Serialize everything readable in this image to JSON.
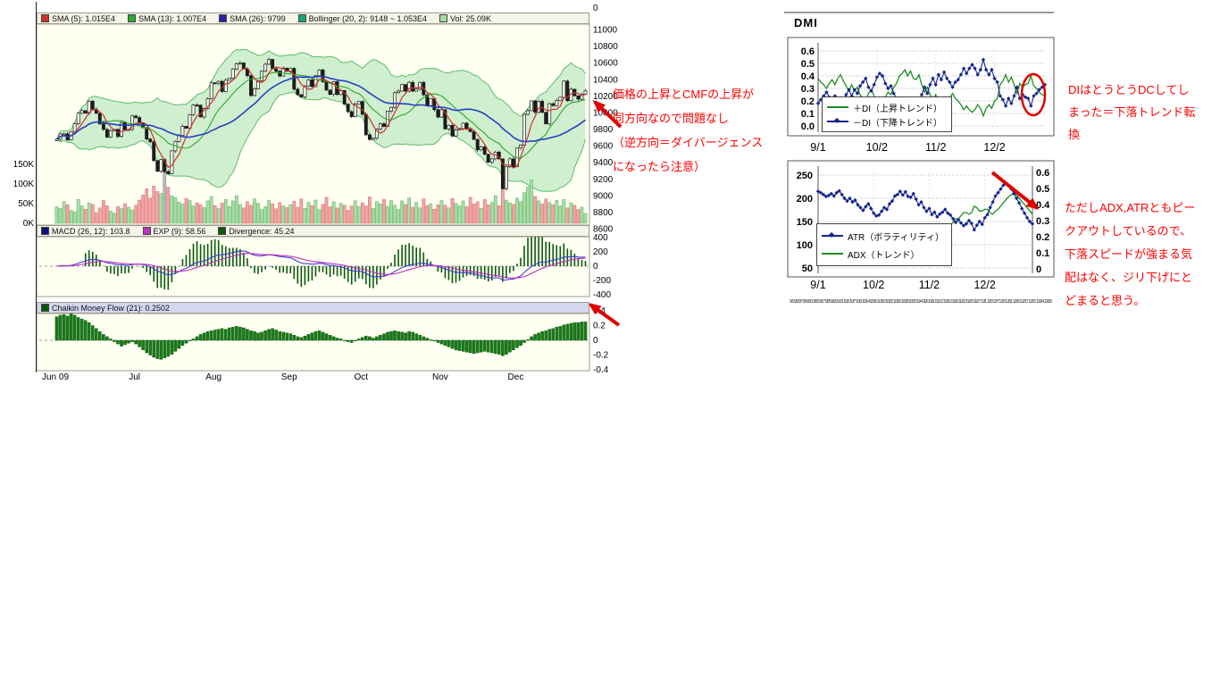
{
  "annotations": {
    "color": "#FF0000",
    "left_lines": [
      "価格の上昇とCMFの上昇が",
      "同方向なので問題なし",
      "（逆方向＝ダイバージェンス",
      "になったら注意）"
    ],
    "dc_lines": [
      "DIはとうとうDCしてし",
      "まった＝下落トレンド転",
      "換"
    ],
    "adx_lines": [
      "ただしADX,ATRともピー",
      "クアウトしているので、",
      "下落スピードが強まる気",
      "配はなく、ジリ下げにと",
      "どまると思う。"
    ]
  },
  "chart_data": [
    {
      "id": "price",
      "type": "candlestick",
      "legend": [
        {
          "label": "SMA (5): 1.015E4",
          "color": "#D03030"
        },
        {
          "label": "SMA (13): 1.007E4",
          "color": "#2FA62F"
        },
        {
          "label": "SMA (26): 9799",
          "color": "#2525A8"
        },
        {
          "label": "Bollinger (20, 2): 9148 ~ 1.053E4",
          "color": "#18A578"
        },
        {
          "label": "Vol: 25.09K",
          "color": "#9FDF9F"
        }
      ],
      "y_top_label": "0",
      "y_ticks": [
        "11000",
        "10800",
        "10600",
        "10400",
        "10200",
        "10000",
        "9800",
        "9600",
        "9400",
        "9200",
        "9000",
        "8800",
        "8600"
      ],
      "ylim": [
        8600,
        11000
      ],
      "volume_ticks": [
        "150K",
        "100K",
        "50K",
        "0K"
      ],
      "x_labels": [
        "Jun 09",
        "Jul",
        "Aug",
        "Sep",
        "Oct",
        "Nov",
        "Dec"
      ],
      "x_label_day_index": [
        0,
        22,
        44,
        65,
        85,
        107,
        128
      ],
      "sma_periods": [
        5,
        13,
        26
      ],
      "bollinger": {
        "period": 20,
        "mult": 2
      },
      "gray_volume_index": 30,
      "closes": [
        9678,
        9741,
        9742,
        9669,
        9768,
        9866,
        9991,
        10022,
        9992,
        10136,
        10040,
        9991,
        9862,
        9796,
        9703,
        9781,
        9796,
        9711,
        9877,
        9783,
        9797,
        9958,
        9939,
        9876,
        9816,
        9680,
        9647,
        9420,
        9291,
        9432,
        9287,
        9261,
        9538,
        9652,
        9723,
        9833,
        9809,
        9973,
        10089,
        10088,
        9945,
        10047,
        10165,
        10357,
        10352,
        10375,
        10252,
        10388,
        10412,
        10524,
        10585,
        10597,
        10524,
        10443,
        10204,
        10284,
        10383,
        10497,
        10581,
        10639,
        10528,
        10497,
        10439,
        10534,
        10493,
        10530,
        10280,
        10214,
        10187,
        10320,
        10393,
        10312,
        10444,
        10513,
        10371,
        10270,
        10217,
        10370,
        10217,
        10265,
        10100,
        10010,
        9950,
        10100,
        10133,
        9979,
        9732,
        9674,
        9691,
        9799,
        9864,
        9832,
        10016,
        10060,
        10238,
        10257,
        10336,
        10257,
        10363,
        10257,
        10282,
        10363,
        10212,
        10083,
        10167,
        10034,
        9945,
        10034,
        9802,
        9844,
        9717,
        9789,
        9808,
        9871,
        9804,
        9770,
        9675,
        9549,
        9585,
        9497,
        9401,
        9441,
        9522,
        9441,
        9081,
        9346,
        9441,
        9346,
        9572,
        9608,
        9977,
        10022,
        10140,
        10004,
        10135,
        10002,
        9862,
        10106,
        10083,
        10142,
        10183,
        10378,
        10142,
        10280,
        10200,
        10160,
        10220,
        10260
      ],
      "volumes_k": [
        42,
        38,
        55,
        47,
        33,
        29,
        61,
        44,
        36,
        52,
        48,
        27,
        39,
        58,
        45,
        31,
        26,
        43,
        37,
        50,
        41,
        34,
        46,
        59,
        72,
        88,
        64,
        95,
        81,
        76,
        160,
        92,
        70,
        66,
        54,
        49,
        63,
        58,
        44,
        52,
        47,
        40,
        57,
        68,
        45,
        38,
        52,
        61,
        43,
        57,
        70,
        48,
        39,
        55,
        46,
        62,
        51,
        35,
        42,
        58,
        49,
        37,
        53,
        44,
        40,
        47,
        56,
        41,
        62,
        38,
        53,
        45,
        59,
        35,
        48,
        66,
        42,
        55,
        39,
        51,
        46,
        33,
        44,
        57,
        43,
        52,
        44,
        67,
        38,
        55,
        49,
        61,
        43,
        58,
        46,
        35,
        57,
        48,
        64,
        41,
        53,
        39,
        62,
        45,
        50,
        36,
        47,
        58,
        46,
        39,
        63,
        51,
        44,
        57,
        42,
        66,
        49,
        55,
        38,
        61,
        47,
        53,
        70,
        45,
        88,
        59,
        52,
        48,
        64,
        55,
        78,
        92,
        110,
        68,
        57,
        49,
        62,
        53,
        47,
        58,
        44,
        61,
        39,
        52,
        46,
        35,
        41,
        25
      ]
    },
    {
      "id": "macd",
      "type": "line+histogram",
      "legend": [
        {
          "label": "MACD (26, 12): 103.8",
          "color": "#101080"
        },
        {
          "label": "EXP (9): 58.56",
          "color": "#C030C0"
        },
        {
          "label": "Divergence: 45.24",
          "color": "#0A5A0A"
        }
      ],
      "y_ticks": [
        "400",
        "200",
        "0",
        "-200",
        "-400"
      ],
      "params": {
        "fast": 12,
        "slow": 26,
        "signal": 9
      }
    },
    {
      "id": "cmf",
      "type": "histogram",
      "legend": [
        {
          "label": "Chaikin Money Flow (21): 0.2502",
          "color": "#0A5A0A"
        }
      ],
      "y_ticks": [
        "0.4",
        "0.2",
        "0",
        "-0.2",
        "-0.4"
      ],
      "values": [
        0.32,
        0.34,
        0.35,
        0.33,
        0.36,
        0.34,
        0.31,
        0.29,
        0.27,
        0.24,
        0.2,
        0.16,
        0.12,
        0.08,
        0.05,
        0.02,
        -0.02,
        -0.05,
        -0.08,
        -0.06,
        -0.04,
        -0.02,
        -0.05,
        -0.09,
        -0.13,
        -0.17,
        -0.2,
        -0.23,
        -0.25,
        -0.26,
        -0.24,
        -0.22,
        -0.19,
        -0.15,
        -0.11,
        -0.07,
        -0.04,
        -0.01,
        0.02,
        0.05,
        0.08,
        0.1,
        0.12,
        0.13,
        0.14,
        0.15,
        0.16,
        0.15,
        0.17,
        0.18,
        0.19,
        0.18,
        0.17,
        0.15,
        0.13,
        0.12,
        0.1,
        0.11,
        0.13,
        0.15,
        0.16,
        0.14,
        0.12,
        0.11,
        0.1,
        0.09,
        0.07,
        0.05,
        0.04,
        0.06,
        0.08,
        0.1,
        0.12,
        0.13,
        0.11,
        0.09,
        0.07,
        0.05,
        0.03,
        0.02,
        0.0,
        -0.02,
        -0.03,
        -0.01,
        0.02,
        0.04,
        0.06,
        0.05,
        0.03,
        0.05,
        0.07,
        0.09,
        0.11,
        0.12,
        0.13,
        0.12,
        0.11,
        0.1,
        0.12,
        0.11,
        0.09,
        0.07,
        0.05,
        0.03,
        0.01,
        -0.01,
        -0.03,
        -0.05,
        -0.07,
        -0.09,
        -0.11,
        -0.13,
        -0.14,
        -0.15,
        -0.16,
        -0.17,
        -0.18,
        -0.17,
        -0.16,
        -0.15,
        -0.16,
        -0.17,
        -0.18,
        -0.19,
        -0.21,
        -0.19,
        -0.16,
        -0.13,
        -0.1,
        -0.07,
        -0.03,
        0.01,
        0.05,
        0.08,
        0.1,
        0.12,
        0.13,
        0.15,
        0.16,
        0.18,
        0.19,
        0.21,
        0.22,
        0.23,
        0.24,
        0.24,
        0.25,
        0.2502
      ]
    },
    {
      "id": "dmi",
      "type": "line",
      "title": "DMI",
      "y_ticks": [
        "0.6",
        "0.5",
        "0.4",
        "0.3",
        "0.2",
        "0.1",
        "0.0"
      ],
      "x_labels": [
        "9/1",
        "10/2",
        "11/2",
        "12/2"
      ],
      "x_label_day_index": [
        0,
        21,
        42,
        63
      ],
      "series": [
        {
          "name": "＋DI（上昇トレンド）",
          "color": "#1E8C1E",
          "marker": "none",
          "values": [
            0.38,
            0.35,
            0.33,
            0.3,
            0.34,
            0.37,
            0.33,
            0.38,
            0.41,
            0.36,
            0.32,
            0.28,
            0.33,
            0.28,
            0.31,
            0.25,
            0.22,
            0.2,
            0.26,
            0.29,
            0.24,
            0.19,
            0.17,
            0.18,
            0.23,
            0.27,
            0.25,
            0.31,
            0.34,
            0.4,
            0.42,
            0.45,
            0.4,
            0.44,
            0.38,
            0.37,
            0.41,
            0.33,
            0.27,
            0.31,
            0.25,
            0.21,
            0.25,
            0.18,
            0.21,
            0.16,
            0.2,
            0.22,
            0.26,
            0.22,
            0.2,
            0.17,
            0.13,
            0.16,
            0.13,
            0.11,
            0.13,
            0.17,
            0.14,
            0.08,
            0.14,
            0.17,
            0.14,
            0.2,
            0.22,
            0.33,
            0.36,
            0.41,
            0.35,
            0.39,
            0.33,
            0.26,
            0.34,
            0.31,
            0.33,
            0.34,
            0.4,
            0.32,
            0.3,
            0.27,
            0.25,
            0.24
          ]
        },
        {
          "name": "－DI（下降トレンド）",
          "color": "#16258C",
          "marker": "diamond",
          "values": [
            0.18,
            0.21,
            0.24,
            0.27,
            0.23,
            0.2,
            0.24,
            0.19,
            0.16,
            0.21,
            0.25,
            0.29,
            0.24,
            0.29,
            0.26,
            0.32,
            0.35,
            0.38,
            0.31,
            0.28,
            0.33,
            0.39,
            0.42,
            0.4,
            0.34,
            0.3,
            0.32,
            0.26,
            0.22,
            0.17,
            0.15,
            0.13,
            0.18,
            0.14,
            0.2,
            0.21,
            0.17,
            0.25,
            0.31,
            0.26,
            0.33,
            0.38,
            0.33,
            0.41,
            0.37,
            0.43,
            0.38,
            0.35,
            0.31,
            0.35,
            0.37,
            0.41,
            0.46,
            0.42,
            0.46,
            0.49,
            0.46,
            0.41,
            0.45,
            0.53,
            0.45,
            0.41,
            0.45,
            0.38,
            0.35,
            0.24,
            0.21,
            0.16,
            0.22,
            0.18,
            0.24,
            0.31,
            0.22,
            0.25,
            0.23,
            0.22,
            0.16,
            0.24,
            0.26,
            0.29,
            0.31,
            0.33
          ]
        }
      ]
    },
    {
      "id": "atr_adx",
      "type": "line",
      "y_left_ticks": [
        "250",
        "200",
        "150",
        "100",
        "50"
      ],
      "y_right_ticks": [
        "0.6",
        "0.5",
        "0.4",
        "0.3",
        "0.2",
        "0.1",
        "0"
      ],
      "x_labels": [
        "9/1",
        "10/2",
        "11/2",
        "12/2"
      ],
      "x_label_day_index": [
        0,
        21,
        42,
        63
      ],
      "footer_dates": "9/1 9/3 9/7 9/9 9/11 9/15 9/17 9/25 9/29 10/1 10/5 10/7 10/9 10/14 10/16 10/20 10/22 10/26 10/28 10/30 11/4 11/6 11/10 11/12 11/16 11/18 11/20 11/25 11/27 12/1 12/3 12/7 12/9 12/11 12/15 12/17 12/21 12/24 12/28",
      "series": [
        {
          "name": "ATR（ボラティリティ）",
          "color": "#16258C",
          "axis": "left",
          "marker": "diamond",
          "values": [
            215,
            212,
            208,
            204,
            206,
            210,
            205,
            212,
            216,
            208,
            200,
            194,
            200,
            192,
            196,
            186,
            180,
            174,
            182,
            188,
            178,
            168,
            162,
            164,
            172,
            180,
            176,
            188,
            194,
            205,
            208,
            215,
            207,
            214,
            204,
            202,
            210,
            198,
            186,
            192,
            180,
            172,
            178,
            165,
            170,
            160,
            166,
            170,
            176,
            168,
            164,
            156,
            148,
            154,
            147,
            141,
            145,
            152,
            146,
            132,
            142,
            150,
            144,
            158,
            165,
            180,
            192,
            205,
            212,
            220,
            228,
            232,
            228,
            220,
            210,
            200,
            190,
            178,
            168,
            158,
            150,
            145
          ]
        },
        {
          "name": "ADX（トレンド）",
          "color": "#1E8C1E",
          "axis": "right",
          "marker": "none",
          "values": [
            0.28,
            0.27,
            0.26,
            0.25,
            0.24,
            0.24,
            0.23,
            0.24,
            0.25,
            0.24,
            0.23,
            0.22,
            0.22,
            0.21,
            0.21,
            0.2,
            0.2,
            0.19,
            0.19,
            0.18,
            0.18,
            0.19,
            0.2,
            0.21,
            0.2,
            0.19,
            0.18,
            0.18,
            0.19,
            0.2,
            0.21,
            0.22,
            0.22,
            0.23,
            0.22,
            0.22,
            0.23,
            0.22,
            0.21,
            0.21,
            0.22,
            0.23,
            0.24,
            0.26,
            0.26,
            0.28,
            0.28,
            0.27,
            0.26,
            0.26,
            0.27,
            0.29,
            0.31,
            0.31,
            0.33,
            0.35,
            0.35,
            0.34,
            0.35,
            0.39,
            0.38,
            0.36,
            0.36,
            0.37,
            0.37,
            0.35,
            0.34,
            0.36,
            0.37,
            0.39,
            0.41,
            0.43,
            0.45,
            0.46,
            0.47,
            0.46,
            0.44,
            0.42,
            0.4,
            0.38,
            0.36,
            0.34
          ]
        }
      ]
    }
  ]
}
